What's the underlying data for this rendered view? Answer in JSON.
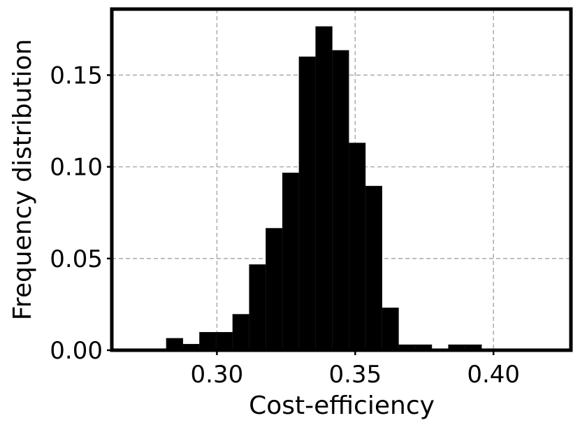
{
  "chart_data": {
    "type": "bar",
    "title": "",
    "xlabel": "Cost-efficiency",
    "ylabel": "Frequency distribution",
    "xlim": [
      0.262,
      0.428
    ],
    "ylim": [
      0.0,
      0.186
    ],
    "xticks": [
      {
        "value": 0.3,
        "label": "0.30"
      },
      {
        "value": 0.35,
        "label": "0.35"
      },
      {
        "value": 0.4,
        "label": "0.40"
      }
    ],
    "yticks": [
      {
        "value": 0.0,
        "label": "0.00"
      },
      {
        "value": 0.05,
        "label": "0.05"
      },
      {
        "value": 0.1,
        "label": "0.10"
      },
      {
        "value": 0.15,
        "label": "0.15"
      }
    ],
    "grid": true,
    "bar_color": "#000000",
    "bins": [
      {
        "x0": 0.2817,
        "x1": 0.2877,
        "value": 0.0065
      },
      {
        "x0": 0.2877,
        "x1": 0.2937,
        "value": 0.0033
      },
      {
        "x0": 0.2937,
        "x1": 0.2997,
        "value": 0.0098
      },
      {
        "x0": 0.2997,
        "x1": 0.3057,
        "value": 0.0098
      },
      {
        "x0": 0.3057,
        "x1": 0.3117,
        "value": 0.0196
      },
      {
        "x0": 0.3117,
        "x1": 0.3177,
        "value": 0.0467
      },
      {
        "x0": 0.3177,
        "x1": 0.3237,
        "value": 0.0665
      },
      {
        "x0": 0.3237,
        "x1": 0.3297,
        "value": 0.0967
      },
      {
        "x0": 0.3297,
        "x1": 0.3357,
        "value": 0.16
      },
      {
        "x0": 0.3357,
        "x1": 0.3417,
        "value": 0.1765
      },
      {
        "x0": 0.3417,
        "x1": 0.3477,
        "value": 0.1635
      },
      {
        "x0": 0.3477,
        "x1": 0.3537,
        "value": 0.113
      },
      {
        "x0": 0.3537,
        "x1": 0.3597,
        "value": 0.0895
      },
      {
        "x0": 0.3597,
        "x1": 0.3657,
        "value": 0.0231
      },
      {
        "x0": 0.3657,
        "x1": 0.3717,
        "value": 0.003
      },
      {
        "x0": 0.3717,
        "x1": 0.3777,
        "value": 0.003
      },
      {
        "x0": 0.3777,
        "x1": 0.3837,
        "value": 0.0008
      },
      {
        "x0": 0.3837,
        "x1": 0.3897,
        "value": 0.003
      },
      {
        "x0": 0.3897,
        "x1": 0.3957,
        "value": 0.003
      }
    ]
  }
}
